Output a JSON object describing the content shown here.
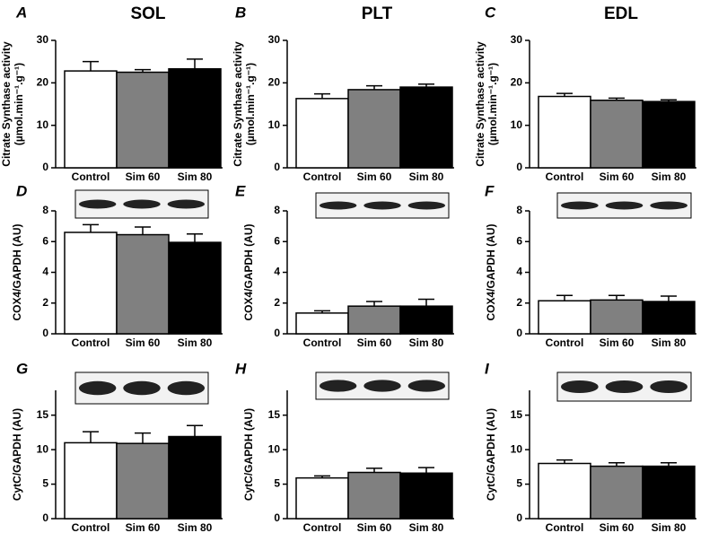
{
  "column_titles": [
    "SOL",
    "PLT",
    "EDL"
  ],
  "chart_data": [
    {
      "type": "bar",
      "label": "A",
      "ylabel": "Citrate Synthase activity",
      "yunit": "(µmol.min⁻¹.g⁻¹)",
      "categories": [
        "Control",
        "Sim 60",
        "Sim 80"
      ],
      "colors": [
        "#ffffff",
        "#808080",
        "#000000"
      ],
      "values": [
        22.8,
        22.5,
        23.3
      ],
      "errors": [
        2.2,
        0.6,
        2.3
      ],
      "ylim": [
        0,
        30
      ],
      "yticks": [
        0,
        10,
        20,
        30
      ]
    },
    {
      "type": "bar",
      "label": "B",
      "ylabel": "Citrate Synthase activity",
      "yunit": "(µmol.min⁻¹.g⁻¹)",
      "categories": [
        "Control",
        "Sim 60",
        "Sim 80"
      ],
      "colors": [
        "#ffffff",
        "#808080",
        "#000000"
      ],
      "values": [
        16.3,
        18.4,
        19.0
      ],
      "errors": [
        1.1,
        0.9,
        0.7
      ],
      "ylim": [
        0,
        30
      ],
      "yticks": [
        0,
        10,
        20,
        30
      ]
    },
    {
      "type": "bar",
      "label": "C",
      "ylabel": "Citrate Synthase activity",
      "yunit": "(µmol.min⁻¹.g⁻¹)",
      "categories": [
        "Control",
        "Sim 60",
        "Sim 80"
      ],
      "colors": [
        "#ffffff",
        "#808080",
        "#000000"
      ],
      "values": [
        16.8,
        15.9,
        15.6
      ],
      "errors": [
        0.7,
        0.5,
        0.4
      ],
      "ylim": [
        0,
        30
      ],
      "yticks": [
        0,
        10,
        20,
        30
      ]
    },
    {
      "type": "bar",
      "label": "D",
      "ylabel": "COX4/GAPDH (AU)",
      "categories": [
        "Control",
        "Sim 60",
        "Sim 80"
      ],
      "colors": [
        "#ffffff",
        "#808080",
        "#000000"
      ],
      "values": [
        6.6,
        6.45,
        5.95
      ],
      "errors": [
        0.5,
        0.5,
        0.55
      ],
      "ylim": [
        0,
        8
      ],
      "yticks": [
        0,
        2,
        4,
        6,
        8
      ]
    },
    {
      "type": "bar",
      "label": "E",
      "ylabel": "COX4/GAPDH (AU)",
      "categories": [
        "Control",
        "Sim 60",
        "Sim 80"
      ],
      "colors": [
        "#ffffff",
        "#808080",
        "#000000"
      ],
      "values": [
        1.35,
        1.8,
        1.8
      ],
      "errors": [
        0.15,
        0.3,
        0.45
      ],
      "ylim": [
        0,
        8
      ],
      "yticks": [
        0,
        2,
        4,
        6,
        8
      ]
    },
    {
      "type": "bar",
      "label": "F",
      "ylabel": "COX4/GAPDH (AU)",
      "categories": [
        "Control",
        "Sim 60",
        "Sim 80"
      ],
      "colors": [
        "#ffffff",
        "#808080",
        "#000000"
      ],
      "values": [
        2.15,
        2.2,
        2.1
      ],
      "errors": [
        0.35,
        0.3,
        0.35
      ],
      "ylim": [
        0,
        8
      ],
      "yticks": [
        0,
        2,
        4,
        6,
        8
      ]
    },
    {
      "type": "bar",
      "label": "G",
      "ylabel": "CytC/GAPDH (AU)",
      "categories": [
        "Control",
        "Sim 60",
        "Sim 80"
      ],
      "colors": [
        "#ffffff",
        "#808080",
        "#000000"
      ],
      "values": [
        11.0,
        10.9,
        11.9
      ],
      "errors": [
        1.6,
        1.5,
        1.6
      ],
      "ylim": [
        0,
        18.6
      ],
      "yticks": [
        0,
        5,
        10,
        15
      ]
    },
    {
      "type": "bar",
      "label": "H",
      "ylabel": "CytC/GAPDH (AU)",
      "categories": [
        "Control",
        "Sim 60",
        "Sim 80"
      ],
      "colors": [
        "#ffffff",
        "#808080",
        "#000000"
      ],
      "values": [
        5.9,
        6.7,
        6.6
      ],
      "errors": [
        0.3,
        0.6,
        0.8
      ],
      "ylim": [
        0,
        18.6
      ],
      "yticks": [
        0,
        5,
        10,
        15
      ]
    },
    {
      "type": "bar",
      "label": "I",
      "ylabel": "CytC/GAPDH (AU)",
      "categories": [
        "Control",
        "Sim 60",
        "Sim 80"
      ],
      "colors": [
        "#ffffff",
        "#808080",
        "#000000"
      ],
      "values": [
        8.0,
        7.6,
        7.6
      ],
      "errors": [
        0.5,
        0.5,
        0.5
      ],
      "ylim": [
        0,
        18.6
      ],
      "yticks": [
        0,
        5,
        10,
        15
      ]
    }
  ]
}
